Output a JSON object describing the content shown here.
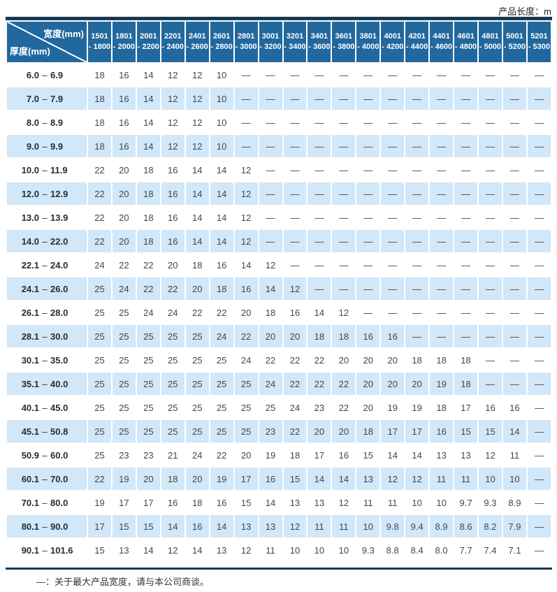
{
  "page": {
    "top_right_label": "产品长度：m",
    "footer_note": "—：关于最大产品宽度，请与本公司商谈。"
  },
  "colors": {
    "header_bg": "#21689e",
    "stripe_bg": "#d2e7f7",
    "border_dark": "#183854"
  },
  "table": {
    "corner": {
      "top_label": "宽度(mm)",
      "bottom_label": "厚度(mm)"
    },
    "columns": [
      {
        "line1": "1501",
        "line2": "- 1800"
      },
      {
        "line1": "1801",
        "line2": "- 2000"
      },
      {
        "line1": "2001",
        "line2": "- 2200"
      },
      {
        "line1": "2201",
        "line2": "- 2400"
      },
      {
        "line1": "2401",
        "line2": "- 2600"
      },
      {
        "line1": "2601",
        "line2": "- 2800"
      },
      {
        "line1": "2801",
        "line2": "- 3000"
      },
      {
        "line1": "3001",
        "line2": "- 3200"
      },
      {
        "line1": "3201",
        "line2": "- 3400"
      },
      {
        "line1": "3401",
        "line2": "- 3600"
      },
      {
        "line1": "3601",
        "line2": "- 3800"
      },
      {
        "line1": "3801",
        "line2": "- 4000"
      },
      {
        "line1": "4001",
        "line2": "- 4200"
      },
      {
        "line1": "4201",
        "line2": "- 4400"
      },
      {
        "line1": "4401",
        "line2": "- 4600"
      },
      {
        "line1": "4601",
        "line2": "- 4800"
      },
      {
        "line1": "4801",
        "line2": "- 5000"
      },
      {
        "line1": "5001",
        "line2": "- 5200"
      },
      {
        "line1": "5201",
        "line2": "- 5300"
      }
    ],
    "rows": [
      {
        "from": "6.0",
        "to": "6.9",
        "values": [
          "18",
          "16",
          "14",
          "12",
          "12",
          "10",
          "—",
          "—",
          "—",
          "—",
          "—",
          "—",
          "—",
          "—",
          "—",
          "—",
          "—",
          "—",
          "—"
        ]
      },
      {
        "from": "7.0",
        "to": "7.9",
        "values": [
          "18",
          "16",
          "14",
          "12",
          "12",
          "10",
          "—",
          "—",
          "—",
          "—",
          "—",
          "—",
          "—",
          "—",
          "—",
          "—",
          "—",
          "—",
          "—"
        ]
      },
      {
        "from": "8.0",
        "to": "8.9",
        "values": [
          "18",
          "16",
          "14",
          "12",
          "12",
          "10",
          "—",
          "—",
          "—",
          "—",
          "—",
          "—",
          "—",
          "—",
          "—",
          "—",
          "—",
          "—",
          "—"
        ]
      },
      {
        "from": "9.0",
        "to": "9.9",
        "values": [
          "18",
          "16",
          "14",
          "12",
          "12",
          "10",
          "—",
          "—",
          "—",
          "—",
          "—",
          "—",
          "—",
          "—",
          "—",
          "—",
          "—",
          "—",
          "—"
        ]
      },
      {
        "from": "10.0",
        "to": "11.9",
        "values": [
          "22",
          "20",
          "18",
          "16",
          "14",
          "14",
          "12",
          "—",
          "—",
          "—",
          "—",
          "—",
          "—",
          "—",
          "—",
          "—",
          "—",
          "—",
          "—"
        ]
      },
      {
        "from": "12.0",
        "to": "12.9",
        "values": [
          "22",
          "20",
          "18",
          "16",
          "14",
          "14",
          "12",
          "—",
          "—",
          "—",
          "—",
          "—",
          "—",
          "—",
          "—",
          "—",
          "—",
          "—",
          "—"
        ]
      },
      {
        "from": "13.0",
        "to": "13.9",
        "values": [
          "22",
          "20",
          "18",
          "16",
          "14",
          "14",
          "12",
          "—",
          "—",
          "—",
          "—",
          "—",
          "—",
          "—",
          "—",
          "—",
          "—",
          "—",
          "—"
        ]
      },
      {
        "from": "14.0",
        "to": "22.0",
        "values": [
          "22",
          "20",
          "18",
          "16",
          "14",
          "14",
          "12",
          "—",
          "—",
          "—",
          "—",
          "—",
          "—",
          "—",
          "—",
          "—",
          "—",
          "—",
          "—"
        ]
      },
      {
        "from": "22.1",
        "to": "24.0",
        "values": [
          "24",
          "22",
          "22",
          "20",
          "18",
          "16",
          "14",
          "12",
          "—",
          "—",
          "—",
          "—",
          "—",
          "—",
          "—",
          "—",
          "—",
          "—",
          "—"
        ]
      },
      {
        "from": "24.1",
        "to": "26.0",
        "values": [
          "25",
          "24",
          "22",
          "22",
          "20",
          "18",
          "16",
          "14",
          "12",
          "—",
          "—",
          "—",
          "—",
          "—",
          "—",
          "—",
          "—",
          "—",
          "—"
        ]
      },
      {
        "from": "26.1",
        "to": "28.0",
        "values": [
          "25",
          "25",
          "24",
          "24",
          "22",
          "22",
          "20",
          "18",
          "16",
          "14",
          "12",
          "—",
          "—",
          "—",
          "—",
          "—",
          "—",
          "—",
          "—"
        ]
      },
      {
        "from": "28.1",
        "to": "30.0",
        "values": [
          "25",
          "25",
          "25",
          "25",
          "25",
          "24",
          "22",
          "20",
          "20",
          "18",
          "18",
          "16",
          "16",
          "—",
          "—",
          "—",
          "—",
          "—",
          "—"
        ]
      },
      {
        "from": "30.1",
        "to": "35.0",
        "values": [
          "25",
          "25",
          "25",
          "25",
          "25",
          "25",
          "24",
          "22",
          "22",
          "22",
          "20",
          "20",
          "20",
          "18",
          "18",
          "18",
          "—",
          "—",
          "—"
        ]
      },
      {
        "from": "35.1",
        "to": "40.0",
        "values": [
          "25",
          "25",
          "25",
          "25",
          "25",
          "25",
          "25",
          "24",
          "22",
          "22",
          "22",
          "20",
          "20",
          "20",
          "19",
          "18",
          "—",
          "—",
          "—"
        ]
      },
      {
        "from": "40.1",
        "to": "45.0",
        "values": [
          "25",
          "25",
          "25",
          "25",
          "25",
          "25",
          "25",
          "25",
          "24",
          "23",
          "22",
          "20",
          "19",
          "19",
          "18",
          "17",
          "16",
          "16",
          "—"
        ]
      },
      {
        "from": "45.1",
        "to": "50.8",
        "values": [
          "25",
          "25",
          "25",
          "25",
          "25",
          "25",
          "25",
          "23",
          "22",
          "20",
          "20",
          "18",
          "17",
          "17",
          "16",
          "15",
          "15",
          "14",
          "—"
        ]
      },
      {
        "from": "50.9",
        "to": "60.0",
        "values": [
          "25",
          "23",
          "23",
          "21",
          "24",
          "22",
          "20",
          "19",
          "18",
          "17",
          "16",
          "15",
          "14",
          "14",
          "13",
          "13",
          "12",
          "11",
          "—"
        ]
      },
      {
        "from": "60.1",
        "to": "70.0",
        "values": [
          "22",
          "19",
          "20",
          "18",
          "20",
          "19",
          "17",
          "16",
          "15",
          "14",
          "14",
          "13",
          "12",
          "12",
          "11",
          "11",
          "10",
          "10",
          "—"
        ]
      },
      {
        "from": "70.1",
        "to": "80.0",
        "values": [
          "19",
          "17",
          "17",
          "16",
          "18",
          "16",
          "15",
          "14",
          "13",
          "13",
          "12",
          "11",
          "11",
          "10",
          "10",
          "9.7",
          "9.3",
          "8.9",
          "—"
        ]
      },
      {
        "from": "80.1",
        "to": "90.0",
        "values": [
          "17",
          "15",
          "15",
          "14",
          "16",
          "14",
          "13",
          "13",
          "12",
          "11",
          "11",
          "10",
          "9.8",
          "9.4",
          "8.9",
          "8.6",
          "8.2",
          "7.9",
          "—"
        ]
      },
      {
        "from": "90.1",
        "to": "101.6",
        "values": [
          "15",
          "13",
          "14",
          "12",
          "14",
          "13",
          "12",
          "11",
          "10",
          "10",
          "10",
          "9.3",
          "8.8",
          "8.4",
          "8.0",
          "7.7",
          "7.4",
          "7.1",
          "—"
        ]
      }
    ]
  }
}
